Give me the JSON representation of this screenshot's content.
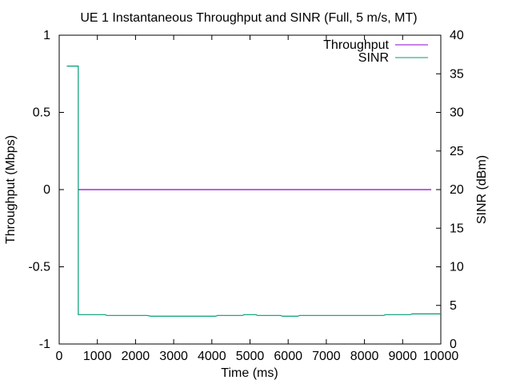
{
  "chart_data": {
    "type": "line",
    "title": "UE 1 Instantaneous Throughput and SINR (Full, 5 m/s, MT)",
    "xlabel": "Time (ms)",
    "ylabel": "Throughput (Mbps)",
    "y2label": "SINR (dBm)",
    "xlim": [
      0,
      10000
    ],
    "ylim": [
      -1,
      1
    ],
    "y2lim": [
      0,
      40
    ],
    "xticks": [
      "0",
      "1000",
      "2000",
      "3000",
      "4000",
      "5000",
      "6000",
      "7000",
      "8000",
      "9000",
      "10000"
    ],
    "yticks": [
      "-1",
      "-0.5",
      "0",
      "0.5",
      "1"
    ],
    "y2ticks": [
      "0",
      "5",
      "10",
      "15",
      "20",
      "25",
      "30",
      "35",
      "40"
    ],
    "grid": false,
    "legend_position": "top-right",
    "series": [
      {
        "name": "Throughput",
        "axis": "y",
        "color": "#9400d3",
        "x": [
          500,
          9750
        ],
        "y": [
          0,
          0
        ]
      },
      {
        "name": "SINR",
        "axis": "y2",
        "color": "#009e73",
        "x": [
          200,
          500,
          500,
          1200,
          1250,
          2300,
          2400,
          4100,
          4150,
          4800,
          4850,
          5150,
          5200,
          5800,
          5850,
          6250,
          6300,
          8500,
          8550,
          9200,
          9250,
          10000
        ],
        "y": [
          36,
          36,
          3.8,
          3.8,
          3.7,
          3.7,
          3.6,
          3.6,
          3.7,
          3.7,
          3.8,
          3.8,
          3.7,
          3.7,
          3.6,
          3.6,
          3.7,
          3.7,
          3.8,
          3.8,
          3.9,
          3.9
        ]
      }
    ]
  }
}
